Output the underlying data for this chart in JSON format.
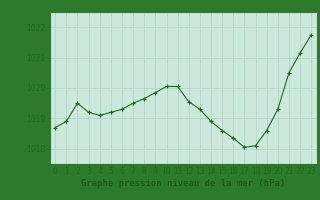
{
  "x": [
    0,
    1,
    2,
    3,
    4,
    5,
    6,
    7,
    8,
    9,
    10,
    11,
    12,
    13,
    14,
    15,
    16,
    17,
    18,
    19,
    20,
    21,
    22,
    23
  ],
  "y": [
    1018.7,
    1018.9,
    1019.5,
    1019.2,
    1019.1,
    1019.2,
    1019.3,
    1019.5,
    1019.65,
    1019.85,
    1020.05,
    1020.05,
    1019.55,
    1019.3,
    1018.9,
    1018.6,
    1018.35,
    1018.05,
    1018.1,
    1018.6,
    1019.3,
    1020.5,
    1021.15,
    1021.75
  ],
  "ylim": [
    1017.5,
    1022.5
  ],
  "yticks": [
    1018,
    1019,
    1020,
    1021,
    1022
  ],
  "xlim": [
    -0.5,
    23.5
  ],
  "xticks": [
    0,
    1,
    2,
    3,
    4,
    5,
    6,
    7,
    8,
    9,
    10,
    11,
    12,
    13,
    14,
    15,
    16,
    17,
    18,
    19,
    20,
    21,
    22,
    23
  ],
  "xtick_labels": [
    "0",
    "1",
    "2",
    "3",
    "4",
    "5",
    "6",
    "7",
    "8",
    "9",
    "10",
    "11",
    "12",
    "13",
    "14",
    "15",
    "16",
    "17",
    "18",
    "19",
    "20",
    "21",
    "22",
    "23"
  ],
  "line_color": "#1a6e1a",
  "marker_color": "#1a6e1a",
  "bg_color": "#cce8dc",
  "plot_bg_color": "#cce8dc",
  "grid_color": "#b0d8c4",
  "border_color": "#2d7a2d",
  "outer_bg": "#2d7a2d",
  "xlabel": "Graphe pression niveau de la mer (hPa)",
  "xlabel_color": "#1a5c1a",
  "tick_color": "#1a6e1a",
  "label_fontsize": 6.5,
  "tick_fontsize": 5.5
}
